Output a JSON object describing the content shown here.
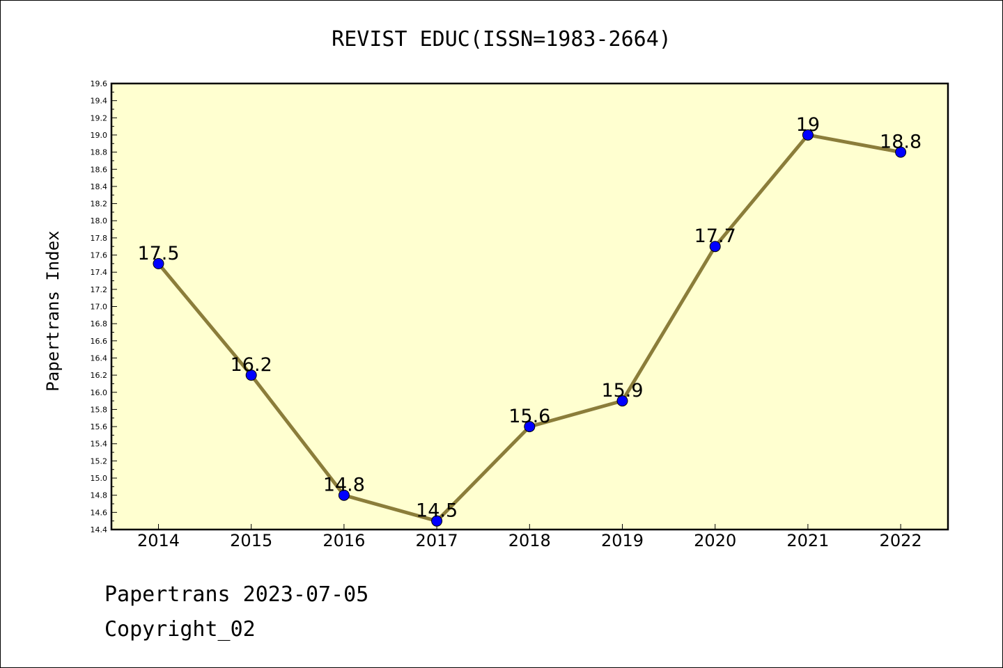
{
  "chart_data": {
    "type": "line",
    "title": "REVIST EDUC(ISSN=1983-2664)",
    "xlabel": "",
    "ylabel": "Papertrans Index",
    "categories": [
      "2014",
      "2015",
      "2016",
      "2017",
      "2018",
      "2019",
      "2020",
      "2021",
      "2022"
    ],
    "series": [
      {
        "values": [
          17.5,
          16.2,
          14.8,
          14.5,
          15.6,
          15.9,
          17.7,
          19,
          18.8
        ],
        "labels": [
          "17.5",
          "16.2",
          "14.8",
          "14.5",
          "15.6",
          "15.9",
          "17.7",
          "19",
          "18.8"
        ]
      }
    ],
    "ylim": [
      14.4,
      19.6
    ],
    "yticks": [
      "14.4",
      "14.6",
      "14.8",
      "15.0",
      "15.2",
      "15.4",
      "15.6",
      "15.8",
      "16.0",
      "16.2",
      "16.4",
      "16.6",
      "16.8",
      "17.0",
      "17.2",
      "17.4",
      "17.6",
      "17.8",
      "18.0",
      "18.2",
      "18.4",
      "18.6",
      "18.8",
      "19.0",
      "19.2",
      "19.4",
      "19.6"
    ],
    "grid": false,
    "colors": {
      "plot_background": "#ffffd0",
      "line": "#8b7d3a",
      "marker": "#0000ff"
    }
  },
  "footer": {
    "date_text": "Papertrans 2023-07-05",
    "copyright_text": "Copyright_02"
  }
}
